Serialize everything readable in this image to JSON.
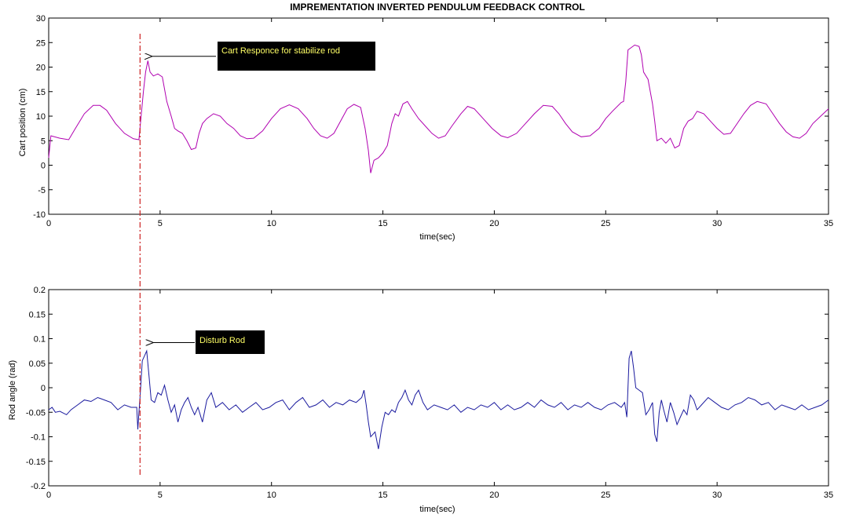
{
  "figure_title": "IMPREMENTATION INVERTED PENDULUM FEEDBACK CONTROL",
  "colors": {
    "cart_line": "#b000b0",
    "rod_line": "#1a1a9e",
    "marker_line": "#cc2222",
    "annotation_bg": "#000000",
    "annotation_text": "#ffff66",
    "axis": "#000000"
  },
  "chart_data": [
    {
      "type": "line",
      "title": "",
      "xlabel": "time(sec)",
      "ylabel": "Cart position (cm)",
      "xlim": [
        0,
        35
      ],
      "ylim": [
        -10,
        30
      ],
      "grid": false,
      "xticks": [
        0,
        5,
        10,
        15,
        20,
        25,
        30,
        35
      ],
      "yticks": [
        -10,
        -5,
        0,
        5,
        10,
        15,
        20,
        25,
        30
      ],
      "xtick_labels": [
        "0",
        "5",
        "10",
        "15",
        "20",
        "25",
        "30",
        "35"
      ],
      "ytick_labels": [
        "-10",
        "-5",
        "0",
        "5",
        "10",
        "15",
        "20",
        "25",
        "30"
      ],
      "series": [
        {
          "x": [
            0,
            0.1,
            0.5,
            0.9,
            1.2,
            1.6,
            2.0,
            2.3,
            2.6,
            3.0,
            3.4,
            3.8,
            4.05,
            4.15,
            4.25,
            4.35,
            4.45,
            4.55,
            4.7,
            4.9,
            5.1,
            5.3,
            5.5,
            5.65,
            5.8,
            6.0,
            6.2,
            6.4,
            6.6,
            6.75,
            6.9,
            7.1,
            7.4,
            7.7,
            8.0,
            8.3,
            8.6,
            8.9,
            9.2,
            9.6,
            10.0,
            10.4,
            10.8,
            11.2,
            11.6,
            11.9,
            12.2,
            12.5,
            12.8,
            13.1,
            13.4,
            13.7,
            14.0,
            14.2,
            14.35,
            14.45,
            14.6,
            14.8,
            15.0,
            15.2,
            15.4,
            15.55,
            15.7,
            15.9,
            16.1,
            16.3,
            16.6,
            16.9,
            17.2,
            17.5,
            17.8,
            18.1,
            18.5,
            18.8,
            19.1,
            19.5,
            19.9,
            20.3,
            20.6,
            21.0,
            21.4,
            21.8,
            22.2,
            22.6,
            22.9,
            23.2,
            23.5,
            23.9,
            24.3,
            24.7,
            25.0,
            25.3,
            25.7,
            25.8,
            25.9,
            26.0,
            26.3,
            26.5,
            26.6,
            26.7,
            26.9,
            27.1,
            27.2,
            27.3,
            27.5,
            27.7,
            27.9,
            28.1,
            28.3,
            28.5,
            28.7,
            28.9,
            29.1,
            29.4,
            29.7,
            30.0,
            30.3,
            30.6,
            30.9,
            31.2,
            31.5,
            31.8,
            32.2,
            32.5,
            32.8,
            33.1,
            33.4,
            33.7,
            34.0,
            34.3,
            34.6,
            35.0
          ],
          "y": [
            1.5,
            6,
            5.5,
            5.2,
            7.5,
            10.5,
            12.2,
            12.2,
            11.2,
            8.5,
            6.5,
            5.4,
            5.2,
            10,
            15,
            19,
            21.3,
            19,
            18.2,
            18.6,
            18,
            13,
            10,
            7.5,
            7,
            6.5,
            5,
            3.2,
            3.5,
            6.5,
            8.5,
            9.5,
            10.5,
            10,
            8.5,
            7.5,
            6,
            5.4,
            5.5,
            7,
            9.5,
            11.5,
            12.3,
            11.5,
            9.5,
            7.5,
            6,
            5.5,
            6.5,
            9,
            11.5,
            12.4,
            11.8,
            7.5,
            3,
            -1.6,
            1,
            1.5,
            2.5,
            4,
            8.5,
            10.5,
            10,
            12.5,
            13,
            11.5,
            9.5,
            8,
            6.5,
            5.5,
            6,
            8,
            10.5,
            12,
            11.5,
            9.5,
            7.5,
            6,
            5.6,
            6.5,
            8.5,
            10.5,
            12.2,
            12,
            10.5,
            8.5,
            6.8,
            5.8,
            6,
            7.5,
            9.5,
            11,
            12.8,
            13,
            17,
            23.5,
            24.5,
            24.2,
            22.5,
            19,
            17.5,
            12.5,
            9,
            5,
            5.5,
            4.5,
            5.5,
            3.5,
            4,
            7.5,
            9,
            9.5,
            11,
            10.5,
            9,
            7.5,
            6.3,
            6.5,
            8.5,
            10.5,
            12.2,
            13,
            12.5,
            10.5,
            8.5,
            6.8,
            5.8,
            5.5,
            6.5,
            8.5,
            9.8,
            11.5
          ]
        }
      ],
      "annotations": [
        {
          "text": "Cart Responce for stabilize rod",
          "arrow_to": [
            4.3,
            22.2
          ]
        }
      ]
    },
    {
      "type": "line",
      "title": "",
      "xlabel": "time(sec)",
      "ylabel": "Rod angle (rad)",
      "xlim": [
        0,
        35
      ],
      "ylim": [
        -0.2,
        0.2
      ],
      "grid": false,
      "xticks": [
        0,
        5,
        10,
        15,
        20,
        25,
        30,
        35
      ],
      "yticks": [
        -0.2,
        -0.15,
        -0.1,
        -0.05,
        0,
        0.05,
        0.1,
        0.15,
        0.2
      ],
      "xtick_labels": [
        "0",
        "5",
        "10",
        "15",
        "20",
        "25",
        "30",
        "35"
      ],
      "ytick_labels": [
        "-0.2",
        "-0.15",
        "-0.1",
        "-0.05",
        "0",
        "0.05",
        "0.1",
        "0.15",
        "0.2"
      ],
      "series": [
        {
          "x": [
            0,
            0.15,
            0.3,
            0.5,
            0.8,
            1.0,
            1.3,
            1.6,
            1.9,
            2.2,
            2.5,
            2.8,
            3.1,
            3.4,
            3.7,
            3.95,
            4.0,
            4.05,
            4.1,
            4.2,
            4.3,
            4.4,
            4.5,
            4.6,
            4.75,
            4.9,
            5.05,
            5.2,
            5.35,
            5.5,
            5.65,
            5.8,
            5.95,
            6.1,
            6.25,
            6.4,
            6.55,
            6.7,
            6.9,
            7.1,
            7.3,
            7.5,
            7.8,
            8.1,
            8.4,
            8.7,
            9.0,
            9.3,
            9.6,
            9.9,
            10.2,
            10.5,
            10.8,
            11.1,
            11.4,
            11.7,
            12.0,
            12.3,
            12.6,
            12.9,
            13.2,
            13.5,
            13.8,
            14.05,
            14.15,
            14.25,
            14.35,
            14.45,
            14.55,
            14.65,
            14.8,
            14.95,
            15.1,
            15.25,
            15.4,
            15.55,
            15.7,
            15.85,
            16.0,
            16.15,
            16.3,
            16.45,
            16.6,
            16.8,
            17.0,
            17.3,
            17.6,
            17.9,
            18.2,
            18.5,
            18.8,
            19.1,
            19.4,
            19.7,
            20.0,
            20.3,
            20.6,
            20.9,
            21.2,
            21.5,
            21.8,
            22.1,
            22.4,
            22.7,
            23.0,
            23.3,
            23.6,
            23.9,
            24.2,
            24.5,
            24.8,
            25.1,
            25.4,
            25.7,
            25.85,
            25.95,
            26.05,
            26.15,
            26.25,
            26.35,
            26.5,
            26.65,
            26.8,
            26.95,
            27.1,
            27.2,
            27.3,
            27.4,
            27.5,
            27.6,
            27.75,
            27.9,
            28.05,
            28.2,
            28.35,
            28.5,
            28.65,
            28.8,
            28.95,
            29.1,
            29.3,
            29.6,
            29.9,
            30.2,
            30.5,
            30.8,
            31.1,
            31.4,
            31.7,
            32.0,
            32.3,
            32.6,
            32.9,
            33.2,
            33.5,
            33.8,
            34.1,
            34.4,
            34.7,
            35.0
          ],
          "y": [
            -0.045,
            -0.04,
            -0.05,
            -0.048,
            -0.055,
            -0.045,
            -0.035,
            -0.025,
            -0.028,
            -0.02,
            -0.025,
            -0.03,
            -0.045,
            -0.035,
            -0.04,
            -0.04,
            -0.085,
            -0.05,
            -0.02,
            0.055,
            0.065,
            0.075,
            0.025,
            -0.025,
            -0.03,
            -0.01,
            -0.015,
            0.005,
            -0.025,
            -0.05,
            -0.035,
            -0.07,
            -0.045,
            -0.03,
            -0.02,
            -0.04,
            -0.055,
            -0.04,
            -0.07,
            -0.025,
            -0.01,
            -0.04,
            -0.03,
            -0.045,
            -0.035,
            -0.05,
            -0.04,
            -0.03,
            -0.045,
            -0.04,
            -0.03,
            -0.025,
            -0.045,
            -0.03,
            -0.02,
            -0.04,
            -0.035,
            -0.025,
            -0.04,
            -0.03,
            -0.035,
            -0.025,
            -0.03,
            -0.02,
            -0.005,
            -0.035,
            -0.07,
            -0.1,
            -0.095,
            -0.09,
            -0.125,
            -0.08,
            -0.05,
            -0.055,
            -0.045,
            -0.05,
            -0.03,
            -0.02,
            -0.005,
            -0.025,
            -0.035,
            -0.015,
            -0.005,
            -0.03,
            -0.045,
            -0.035,
            -0.04,
            -0.045,
            -0.035,
            -0.05,
            -0.04,
            -0.045,
            -0.035,
            -0.04,
            -0.03,
            -0.045,
            -0.035,
            -0.045,
            -0.04,
            -0.03,
            -0.04,
            -0.025,
            -0.035,
            -0.04,
            -0.03,
            -0.045,
            -0.035,
            -0.04,
            -0.03,
            -0.04,
            -0.045,
            -0.035,
            -0.03,
            -0.04,
            -0.03,
            -0.06,
            0.06,
            0.075,
            0.04,
            0.0,
            -0.005,
            -0.01,
            -0.055,
            -0.045,
            -0.03,
            -0.095,
            -0.11,
            -0.05,
            -0.025,
            -0.045,
            -0.07,
            -0.03,
            -0.05,
            -0.075,
            -0.06,
            -0.045,
            -0.055,
            -0.015,
            -0.025,
            -0.045,
            -0.035,
            -0.02,
            -0.03,
            -0.04,
            -0.045,
            -0.035,
            -0.03,
            -0.02,
            -0.025,
            -0.035,
            -0.03,
            -0.045,
            -0.035,
            -0.04,
            -0.045,
            -0.035,
            -0.045,
            -0.04,
            -0.035,
            -0.025
          ]
        }
      ],
      "annotations": [
        {
          "text": "Disturb Rod",
          "arrow_to": [
            4.35,
            0.092
          ]
        }
      ]
    }
  ],
  "disturbance_marker_time": 4.1
}
